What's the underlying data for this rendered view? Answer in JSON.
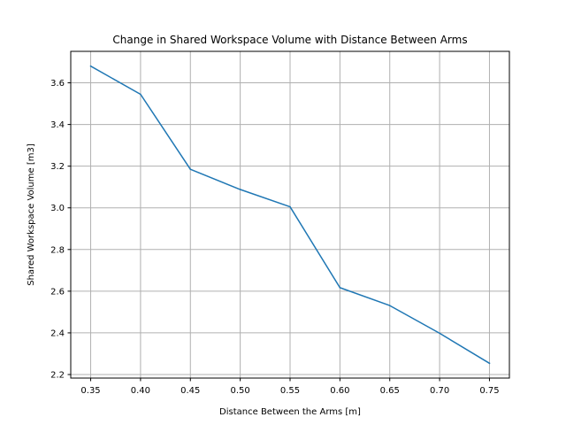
{
  "chart_data": {
    "type": "line",
    "title": "Change in Shared Workspace Volume with Distance Between Arms",
    "xlabel": "Distance Between the Arms [m]",
    "ylabel": "Shared Workspace Volume [m3]",
    "x": [
      0.35,
      0.4,
      0.45,
      0.5,
      0.55,
      0.6,
      0.65,
      0.7,
      0.75
    ],
    "series": [
      {
        "values": [
          3.68,
          3.545,
          3.185,
          3.088,
          3.005,
          2.617,
          2.531,
          2.398,
          2.254
        ],
        "color": "#1f77b4"
      }
    ],
    "xlim": [
      0.33,
      0.77
    ],
    "ylim": [
      2.183,
      3.751
    ],
    "xticks": [
      "0.35",
      "0.40",
      "0.45",
      "0.50",
      "0.55",
      "0.60",
      "0.65",
      "0.70",
      "0.75"
    ],
    "yticks": [
      "2.2",
      "2.4",
      "2.6",
      "2.8",
      "3.0",
      "3.2",
      "3.4",
      "3.6"
    ],
    "grid": true
  }
}
